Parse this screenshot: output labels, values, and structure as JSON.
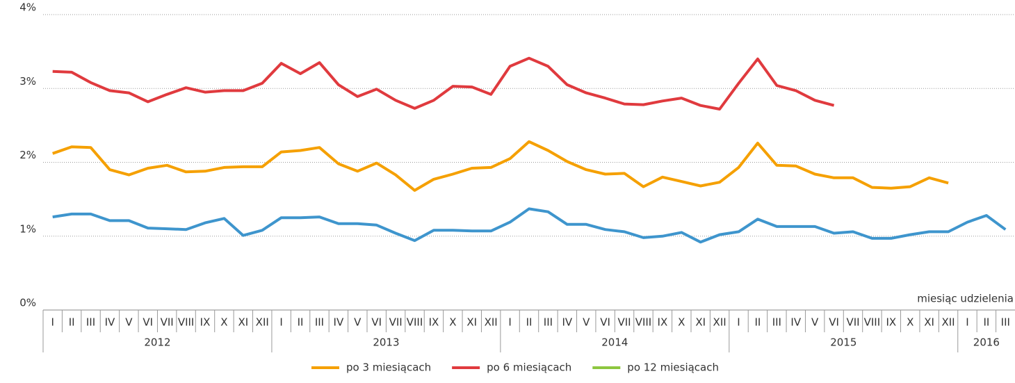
{
  "chart_data": {
    "type": "line",
    "x_label": "miesiąc udzielenia",
    "categories": [
      "I",
      "II",
      "III",
      "IV",
      "V",
      "VI",
      "VII",
      "VIII",
      "IX",
      "X",
      "XI",
      "XII",
      "I",
      "II",
      "III",
      "IV",
      "V",
      "VI",
      "VII",
      "VIII",
      "IX",
      "X",
      "XI",
      "XII",
      "I",
      "II",
      "III",
      "IV",
      "V",
      "VI",
      "VII",
      "VIII",
      "IX",
      "X",
      "XI",
      "XII",
      "I",
      "II",
      "III",
      "IV",
      "V",
      "VI",
      "VII",
      "VIII",
      "IX",
      "X",
      "XI",
      "XII",
      "I",
      "II",
      "III"
    ],
    "category_groups": [
      "2012",
      "2013",
      "2014",
      "2015",
      "2016"
    ],
    "series": [
      {
        "name": "po 3 miesiącach",
        "color": "#f5a000",
        "values": [
          2.12,
          2.21,
          2.2,
          1.9,
          1.83,
          1.92,
          1.96,
          1.87,
          1.88,
          1.93,
          1.94,
          1.94,
          2.14,
          2.16,
          2.2,
          1.98,
          1.88,
          1.99,
          1.83,
          1.62,
          1.77,
          1.84,
          1.92,
          1.93,
          2.05,
          2.28,
          2.16,
          2.01,
          1.9,
          1.84,
          1.85,
          1.67,
          1.8,
          1.74,
          1.68,
          1.73,
          1.93,
          2.26,
          1.96,
          1.95,
          1.84,
          1.79,
          1.79,
          1.66,
          1.65,
          1.67,
          1.79,
          1.72,
          null,
          null,
          null
        ]
      },
      {
        "name": "po 6 miesiącach",
        "color": "#e03a3e",
        "values": [
          3.23,
          3.22,
          3.08,
          2.97,
          2.94,
          2.82,
          2.92,
          3.01,
          2.95,
          2.97,
          2.97,
          3.07,
          3.34,
          3.2,
          3.35,
          3.05,
          2.89,
          2.99,
          2.84,
          2.73,
          2.84,
          3.03,
          3.02,
          2.92,
          3.3,
          3.41,
          3.3,
          3.05,
          2.94,
          2.87,
          2.79,
          2.78,
          2.83,
          2.87,
          2.77,
          2.72,
          3.07,
          3.4,
          3.04,
          2.97,
          2.84,
          2.77,
          null,
          null,
          null,
          null,
          null,
          null,
          null,
          null,
          null
        ]
      },
      {
        "name": "po 12 miesiącach",
        "color": "#8dc63f",
        "values": [
          null,
          null,
          null,
          null,
          null,
          null,
          null,
          null,
          null,
          null,
          null,
          null,
          null,
          null,
          null,
          null,
          null,
          null,
          null,
          null,
          null,
          null,
          null,
          null,
          null,
          null,
          null,
          null,
          null,
          null,
          null,
          null,
          null,
          null,
          null,
          null,
          null,
          null,
          null,
          null,
          null,
          null,
          null,
          null,
          null,
          null,
          null,
          null,
          null,
          null,
          null
        ]
      },
      {
        "color": "#3e95cd",
        "values": [
          1.26,
          1.3,
          1.3,
          1.21,
          1.21,
          1.11,
          1.1,
          1.09,
          1.18,
          1.24,
          1.01,
          1.08,
          1.25,
          1.25,
          1.26,
          1.17,
          1.17,
          1.15,
          1.04,
          0.94,
          1.08,
          1.08,
          1.07,
          1.07,
          1.19,
          1.37,
          1.33,
          1.16,
          1.16,
          1.09,
          1.06,
          0.98,
          1.0,
          1.05,
          0.92,
          1.02,
          1.06,
          1.23,
          1.13,
          1.13,
          1.13,
          1.04,
          1.06,
          0.97,
          0.97,
          1.02,
          1.06,
          1.06,
          1.19,
          1.28,
          1.09
        ]
      }
    ],
    "ylim": [
      0,
      4
    ],
    "yticks": [
      {
        "value": 0,
        "label": "0%"
      },
      {
        "value": 1,
        "label": "1%"
      },
      {
        "value": 2,
        "label": "2%"
      },
      {
        "value": 3,
        "label": "3%"
      },
      {
        "value": 4,
        "label": "4%"
      }
    ],
    "grid": true,
    "legend": "bottom"
  }
}
